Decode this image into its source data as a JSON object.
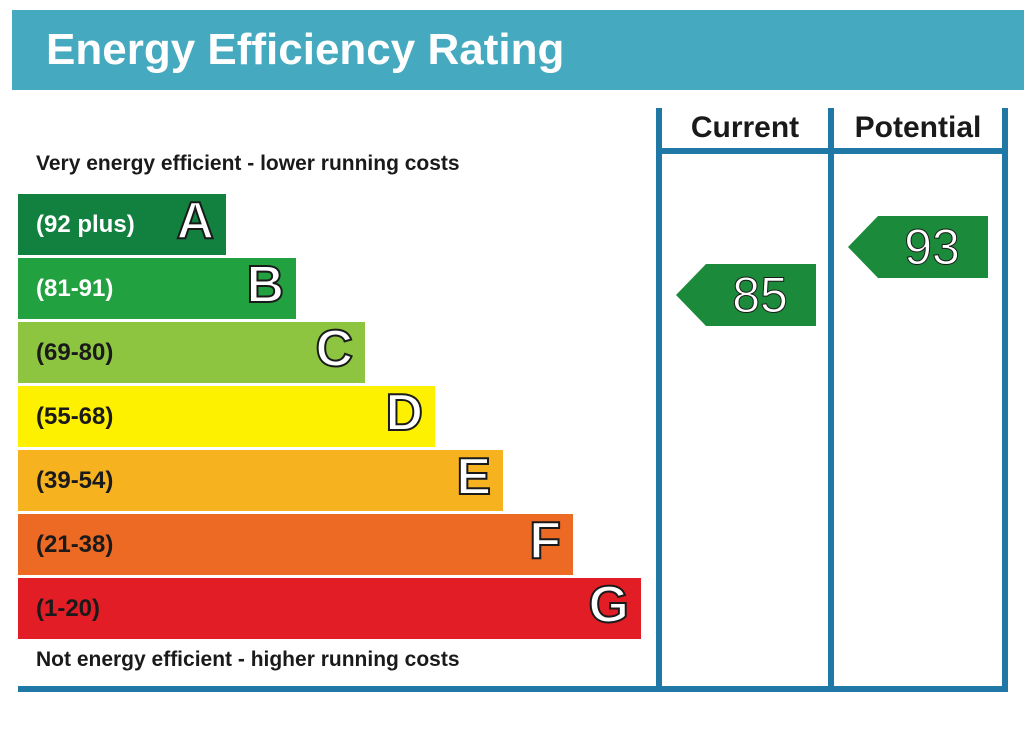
{
  "title": "Energy Efficiency Rating",
  "caption_top": "Very energy efficient - lower running costs",
  "caption_bottom": "Not energy efficient - higher running costs",
  "columns": {
    "current": "Current",
    "potential": "Potential"
  },
  "colors": {
    "header": "#45a9bf",
    "frame": "#1f78a6",
    "rating_arrow": "#1b8a3a"
  },
  "bands": [
    {
      "letter": "A",
      "range": "(92 plus)",
      "color": "#12803f",
      "text_color": "#ffffff"
    },
    {
      "letter": "B",
      "range": "(81-91)",
      "color": "#22a140",
      "text_color": "#ffffff"
    },
    {
      "letter": "C",
      "range": "(69-80)",
      "color": "#8dc540",
      "text_color": "#1a1a1a"
    },
    {
      "letter": "D",
      "range": "(55-68)",
      "color": "#fef100",
      "text_color": "#1a1a1a"
    },
    {
      "letter": "E",
      "range": "(39-54)",
      "color": "#f7b21f",
      "text_color": "#1a1a1a"
    },
    {
      "letter": "F",
      "range": "(21-38)",
      "color": "#ec6a24",
      "text_color": "#1a1a1a"
    },
    {
      "letter": "G",
      "range": "(1-20)",
      "color": "#e31d25",
      "text_color": "#1a1a1a"
    }
  ],
  "ratings": {
    "current": 85,
    "potential": 93
  }
}
